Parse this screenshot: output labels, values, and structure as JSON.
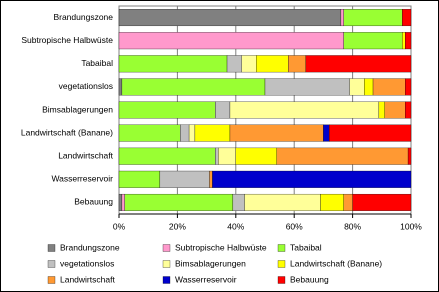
{
  "chart_data": {
    "type": "stacked_bar_horizontal",
    "categories": [
      "Brandungszone",
      "Subtropische Halbwüste",
      "Tabaibal",
      "vegetationslos",
      "Bimsablagerungen",
      "Landwirtschaft (Banane)",
      "Landwirtschaft",
      "Wasserreservoir",
      "Bebauung"
    ],
    "series": [
      {
        "name": "Brandungszone",
        "color": "#808080",
        "values": [
          76,
          0,
          0,
          1,
          0,
          0,
          0,
          0,
          1
        ]
      },
      {
        "name": "Subtropische Halbwüste",
        "color": "#ff99cc",
        "values": [
          1,
          77,
          0,
          0,
          0,
          0,
          0,
          0,
          1
        ]
      },
      {
        "name": "Tabaibal",
        "color": "#99ff33",
        "values": [
          20,
          20,
          37,
          49,
          33,
          21,
          33,
          14,
          37
        ]
      },
      {
        "name": "vegetationslos",
        "color": "#c0c0c0",
        "values": [
          0,
          0,
          5,
          29,
          5,
          3,
          1,
          17,
          4
        ]
      },
      {
        "name": "Bimsablagerungen",
        "color": "#ffff99",
        "values": [
          0,
          0,
          5,
          5,
          51,
          2,
          6,
          0,
          26
        ]
      },
      {
        "name": "Landwirtschaft (Banane)",
        "color": "#ffff00",
        "values": [
          0,
          1,
          11,
          3,
          2,
          12,
          14,
          0,
          8
        ]
      },
      {
        "name": "Landwirtschaft",
        "color": "#ff9933",
        "values": [
          0,
          0,
          6,
          11,
          7,
          32,
          45,
          1,
          3
        ]
      },
      {
        "name": "Wasserreservoir",
        "color": "#0000cc",
        "values": [
          0,
          0,
          0,
          0,
          0,
          2,
          0,
          68,
          0
        ]
      },
      {
        "name": "Bebauung",
        "color": "#ff0000",
        "values": [
          3,
          2,
          36,
          2,
          2,
          28,
          1,
          0,
          20
        ]
      }
    ],
    "xlim": [
      0,
      100
    ],
    "xticks": [
      {
        "value": 0,
        "label": "0%"
      },
      {
        "value": 20,
        "label": "20%"
      },
      {
        "value": 40,
        "label": "40%"
      },
      {
        "value": 60,
        "label": "60%"
      },
      {
        "value": 80,
        "label": "80%"
      },
      {
        "value": 100,
        "label": "100%"
      }
    ],
    "grid": true
  }
}
